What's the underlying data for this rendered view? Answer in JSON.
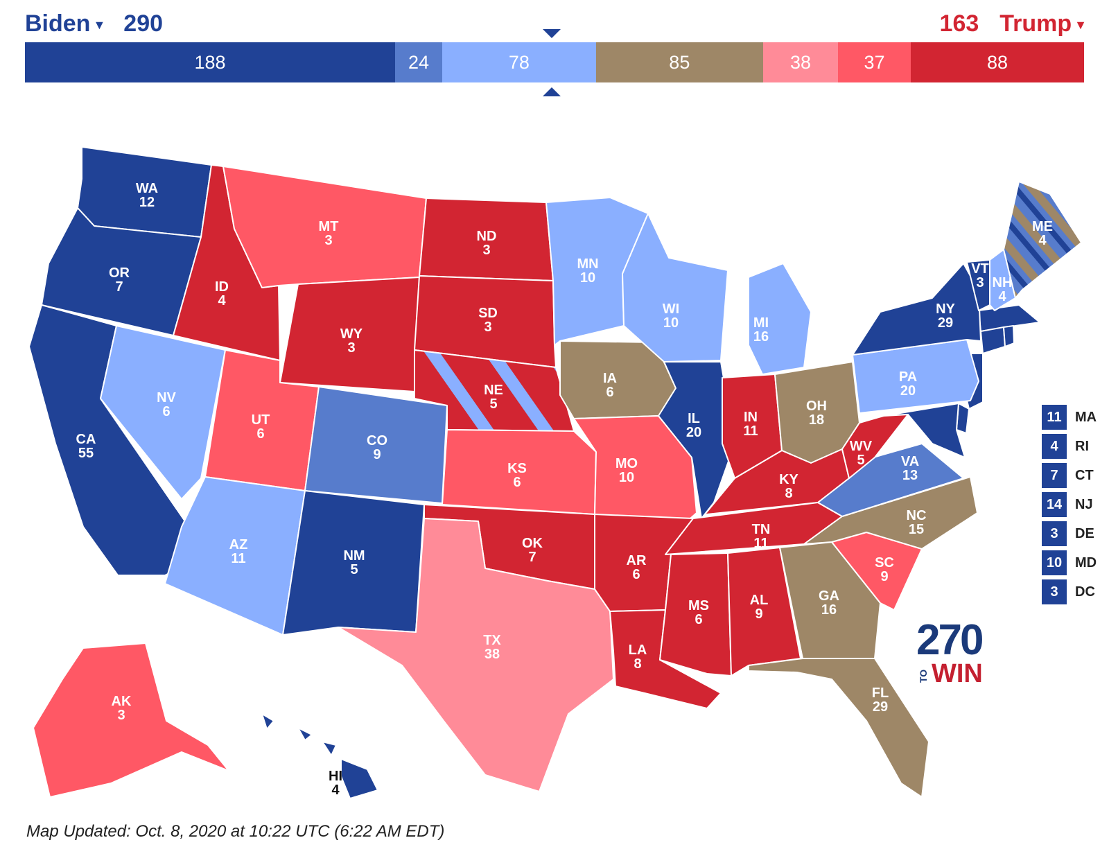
{
  "header": {
    "left": {
      "name": "Biden",
      "total": "290",
      "color": "#204296"
    },
    "right": {
      "name": "Trump",
      "total": "163",
      "color": "#d22532"
    }
  },
  "bar": [
    {
      "label": "188",
      "value": 188,
      "color": "#204296"
    },
    {
      "label": "24",
      "value": 24,
      "color": "#577ccc"
    },
    {
      "label": "78",
      "value": 78,
      "color": "#8aafff"
    },
    {
      "label": "85",
      "value": 85,
      "color": "#9e8767"
    },
    {
      "label": "38",
      "value": 38,
      "color": "#ff8b98"
    },
    {
      "label": "37",
      "value": 37,
      "color": "#ff5865"
    },
    {
      "label": "88",
      "value": 88,
      "color": "#d22532"
    }
  ],
  "colors": {
    "solid_d": "#204296",
    "likely_d": "#577ccc",
    "lean_d": "#8aafff",
    "tossup": "#9e8767",
    "lean_r": "#ff8b98",
    "likely_r": "#ff5865",
    "solid_r": "#d22532"
  },
  "states": [
    {
      "abbr": "WA",
      "ev": "12",
      "rating": "solid_d"
    },
    {
      "abbr": "OR",
      "ev": "7",
      "rating": "solid_d"
    },
    {
      "abbr": "CA",
      "ev": "55",
      "rating": "solid_d"
    },
    {
      "abbr": "NV",
      "ev": "6",
      "rating": "lean_d"
    },
    {
      "abbr": "ID",
      "ev": "4",
      "rating": "solid_r"
    },
    {
      "abbr": "MT",
      "ev": "3",
      "rating": "likely_r"
    },
    {
      "abbr": "WY",
      "ev": "3",
      "rating": "solid_r"
    },
    {
      "abbr": "UT",
      "ev": "6",
      "rating": "likely_r"
    },
    {
      "abbr": "AZ",
      "ev": "11",
      "rating": "lean_d"
    },
    {
      "abbr": "CO",
      "ev": "9",
      "rating": "likely_d"
    },
    {
      "abbr": "NM",
      "ev": "5",
      "rating": "solid_d"
    },
    {
      "abbr": "ND",
      "ev": "3",
      "rating": "solid_r"
    },
    {
      "abbr": "SD",
      "ev": "3",
      "rating": "solid_r"
    },
    {
      "abbr": "NE",
      "ev": "5",
      "rating": "solid_r"
    },
    {
      "abbr": "KS",
      "ev": "6",
      "rating": "likely_r"
    },
    {
      "abbr": "OK",
      "ev": "7",
      "rating": "solid_r"
    },
    {
      "abbr": "TX",
      "ev": "38",
      "rating": "lean_r"
    },
    {
      "abbr": "MN",
      "ev": "10",
      "rating": "lean_d"
    },
    {
      "abbr": "IA",
      "ev": "6",
      "rating": "tossup"
    },
    {
      "abbr": "MO",
      "ev": "10",
      "rating": "likely_r"
    },
    {
      "abbr": "AR",
      "ev": "6",
      "rating": "solid_r"
    },
    {
      "abbr": "LA",
      "ev": "8",
      "rating": "solid_r"
    },
    {
      "abbr": "WI",
      "ev": "10",
      "rating": "lean_d"
    },
    {
      "abbr": "IL",
      "ev": "20",
      "rating": "solid_d"
    },
    {
      "abbr": "MI",
      "ev": "16",
      "rating": "lean_d"
    },
    {
      "abbr": "IN",
      "ev": "11",
      "rating": "solid_r"
    },
    {
      "abbr": "OH",
      "ev": "18",
      "rating": "tossup"
    },
    {
      "abbr": "KY",
      "ev": "8",
      "rating": "solid_r"
    },
    {
      "abbr": "TN",
      "ev": "11",
      "rating": "solid_r"
    },
    {
      "abbr": "MS",
      "ev": "6",
      "rating": "solid_r"
    },
    {
      "abbr": "AL",
      "ev": "9",
      "rating": "solid_r"
    },
    {
      "abbr": "GA",
      "ev": "16",
      "rating": "tossup"
    },
    {
      "abbr": "FL",
      "ev": "29",
      "rating": "tossup"
    },
    {
      "abbr": "SC",
      "ev": "9",
      "rating": "likely_r"
    },
    {
      "abbr": "NC",
      "ev": "15",
      "rating": "tossup"
    },
    {
      "abbr": "VA",
      "ev": "13",
      "rating": "likely_d"
    },
    {
      "abbr": "WV",
      "ev": "5",
      "rating": "solid_r"
    },
    {
      "abbr": "PA",
      "ev": "20",
      "rating": "lean_d"
    },
    {
      "abbr": "NY",
      "ev": "29",
      "rating": "solid_d"
    },
    {
      "abbr": "VT",
      "ev": "3",
      "rating": "solid_d"
    },
    {
      "abbr": "NH",
      "ev": "4",
      "rating": "lean_d"
    },
    {
      "abbr": "ME",
      "ev": "4",
      "rating": "likely_d"
    },
    {
      "abbr": "AK",
      "ev": "3",
      "rating": "likely_r"
    },
    {
      "abbr": "HI",
      "ev": "4",
      "rating": "solid_d"
    }
  ],
  "small_states": [
    {
      "ev": "11",
      "abbr": "MA"
    },
    {
      "ev": "4",
      "abbr": "RI"
    },
    {
      "ev": "7",
      "abbr": "CT"
    },
    {
      "ev": "14",
      "abbr": "NJ"
    },
    {
      "ev": "3",
      "abbr": "DE"
    },
    {
      "ev": "10",
      "abbr": "MD"
    },
    {
      "ev": "3",
      "abbr": "DC"
    }
  ],
  "logo": {
    "number": "270",
    "to": "TO",
    "win": "WIN"
  },
  "footer": {
    "updated": "Map Updated: Oct. 8, 2020 at 10:22 UTC (6:22 AM EDT)"
  }
}
